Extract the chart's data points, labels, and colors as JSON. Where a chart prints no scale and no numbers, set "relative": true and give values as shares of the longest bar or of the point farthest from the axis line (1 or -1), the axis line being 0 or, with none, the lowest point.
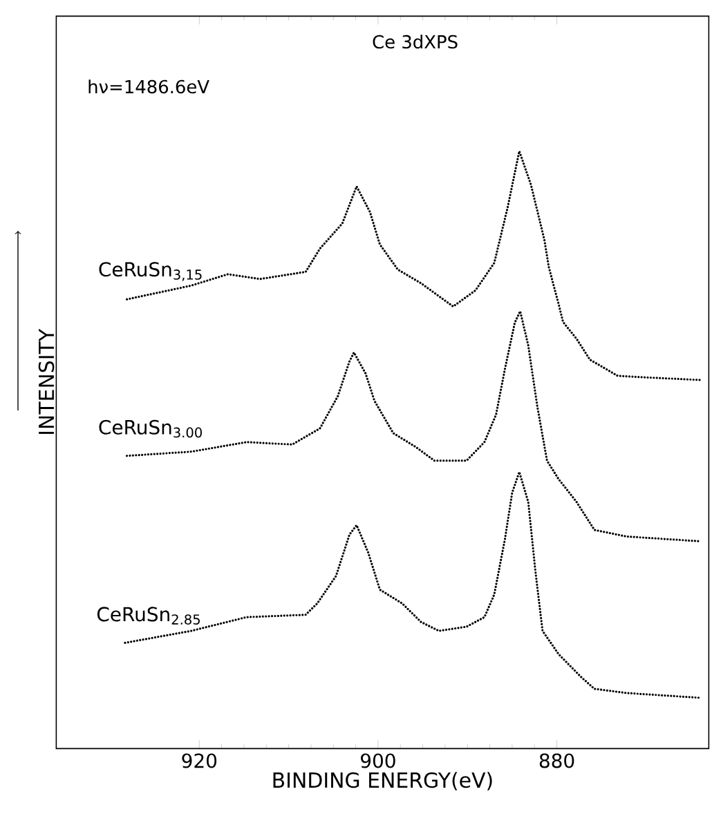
{
  "chart_data": {
    "type": "line",
    "title": "Ce 3dXPS",
    "xlabel": "BINDING ENERGY(eV)",
    "ylabel": "INTENSITY",
    "annotations": [
      "hν=1486.6eV"
    ],
    "relative": true,
    "line_style": "dotted",
    "xlim": [
      936,
      863
    ],
    "xticks": [
      920,
      900,
      880
    ],
    "series": [
      {
        "name": "CeRuSn$_{3,15}$",
        "color": "#000000",
        "x": [
          928.1,
          920.9,
          916.8,
          913.2,
          908.1,
          906.5,
          904.0,
          902.4,
          900.9,
          899.8,
          897.8,
          895.2,
          891.6,
          889.1,
          887.0,
          885.5,
          884.2,
          882.9,
          881.4,
          880.9,
          879.8,
          879.3,
          877.8,
          876.3,
          873.2,
          869.6,
          864.0
        ],
        "values": [
          0.752,
          0.775,
          0.794,
          0.786,
          0.798,
          0.837,
          0.879,
          0.941,
          0.898,
          0.844,
          0.802,
          0.779,
          0.74,
          0.767,
          0.813,
          0.906,
          1.0,
          0.944,
          0.852,
          0.806,
          0.744,
          0.714,
          0.686,
          0.651,
          0.624,
          0.621,
          0.617
        ]
      },
      {
        "name": "CeRuSn$_{3.00}$",
        "color": "#000000",
        "x": [
          928.1,
          920.9,
          914.7,
          909.6,
          906.5,
          904.5,
          903.2,
          902.7,
          901.4,
          900.4,
          898.3,
          895.8,
          893.7,
          890.1,
          888.1,
          886.8,
          885.8,
          884.7,
          884.1,
          883.2,
          882.2,
          881.1,
          879.8,
          877.8,
          875.8,
          872.2,
          864.0
        ],
        "values": [
          0.49,
          0.497,
          0.513,
          0.509,
          0.536,
          0.59,
          0.648,
          0.663,
          0.628,
          0.582,
          0.528,
          0.505,
          0.482,
          0.482,
          0.513,
          0.559,
          0.636,
          0.713,
          0.732,
          0.675,
          0.574,
          0.482,
          0.451,
          0.413,
          0.366,
          0.355,
          0.347
        ]
      },
      {
        "name": "CeRuSn$_{2.85}$",
        "color": "#000000",
        "x": [
          928.3,
          920.9,
          914.7,
          908.1,
          906.8,
          904.7,
          903.2,
          902.4,
          901.1,
          899.8,
          897.3,
          895.2,
          893.2,
          890.1,
          888.1,
          887.0,
          885.8,
          885.0,
          884.2,
          883.2,
          882.4,
          881.6,
          879.8,
          877.3,
          875.8,
          872.2,
          864.0
        ],
        "values": [
          0.177,
          0.197,
          0.22,
          0.224,
          0.243,
          0.289,
          0.358,
          0.374,
          0.328,
          0.266,
          0.243,
          0.212,
          0.197,
          0.204,
          0.22,
          0.258,
          0.351,
          0.428,
          0.463,
          0.413,
          0.297,
          0.197,
          0.158,
          0.12,
          0.1,
          0.093,
          0.085
        ]
      }
    ]
  }
}
